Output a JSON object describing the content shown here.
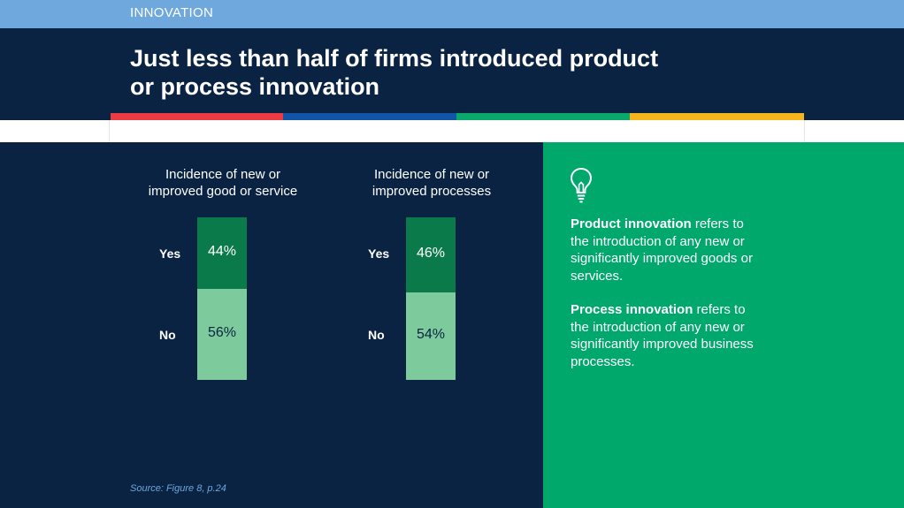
{
  "header": {
    "section_label": "INNOVATION",
    "title_line1": "Just less than half of firms introduced product",
    "title_line2": "or process innovation"
  },
  "colors": {
    "navy": "#0a2342",
    "light_blue": "#6fa8dc",
    "green_panel": "#00a86b",
    "dark_green": "#0b7a4b",
    "light_green": "#7dcb9c",
    "stripes": [
      "#ee3a43",
      "#1155a8",
      "#0aa86b",
      "#f6b51d"
    ]
  },
  "chart_data": [
    {
      "type": "bar",
      "stacked": true,
      "title_lines": [
        "Incidence of new or",
        "improved good or service"
      ],
      "categories": [
        "Yes",
        "No"
      ],
      "values": [
        44,
        56
      ],
      "value_labels": [
        "44%",
        "56%"
      ],
      "ylim": [
        0,
        100
      ]
    },
    {
      "type": "bar",
      "stacked": true,
      "title_lines": [
        "Incidence of new or",
        "improved processes"
      ],
      "categories": [
        "Yes",
        "No"
      ],
      "values": [
        46,
        54
      ],
      "value_labels": [
        "46%",
        "54%"
      ],
      "ylim": [
        0,
        100
      ]
    }
  ],
  "source": "Source: Figure 8, p.24",
  "definitions": {
    "icon": "lightbulb-icon",
    "product_term": "Product innovation",
    "product_lines": [
      " refers to",
      "the introduction of any new or",
      "significantly improved goods or",
      "services."
    ],
    "process_term": "Process innovation",
    "process_lines": [
      " refers to",
      "the introduction of any new or",
      "significantly improved business",
      "processes."
    ]
  }
}
